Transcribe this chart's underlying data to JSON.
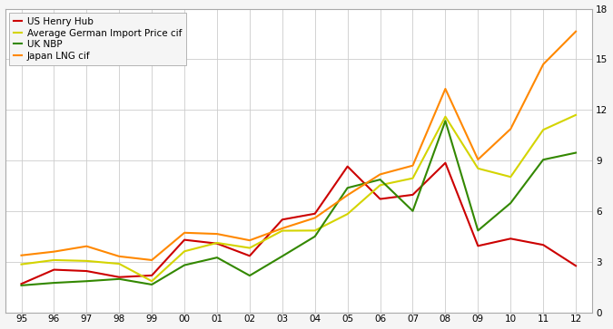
{
  "years": [
    1995,
    1996,
    1997,
    1998,
    1999,
    2000,
    2001,
    2002,
    2003,
    2004,
    2005,
    2006,
    2007,
    2008,
    2009,
    2010,
    2011,
    2012
  ],
  "henry_hub": [
    1.69,
    2.53,
    2.45,
    2.09,
    2.19,
    4.3,
    4.08,
    3.35,
    5.5,
    5.85,
    8.65,
    6.72,
    6.97,
    8.86,
    3.94,
    4.37,
    4.0,
    2.76
  ],
  "german_import": [
    2.85,
    3.1,
    3.05,
    2.88,
    1.85,
    3.62,
    4.12,
    3.82,
    4.84,
    4.85,
    5.83,
    7.54,
    7.95,
    11.6,
    8.53,
    8.03,
    10.82,
    11.7
  ],
  "uk_nbp": [
    1.6,
    1.75,
    1.85,
    1.98,
    1.65,
    2.8,
    3.25,
    2.18,
    3.33,
    4.5,
    7.38,
    7.87,
    6.01,
    11.35,
    4.85,
    6.48,
    9.05,
    9.46
  ],
  "japan_lng": [
    3.38,
    3.6,
    3.92,
    3.32,
    3.1,
    4.72,
    4.65,
    4.27,
    4.98,
    5.6,
    6.95,
    8.18,
    8.7,
    13.25,
    9.06,
    10.87,
    14.7,
    16.65
  ],
  "series_colors": {
    "henry_hub": "#cc0000",
    "german_import": "#d4d400",
    "uk_nbp": "#338800",
    "japan_lng": "#ff8800"
  },
  "series_labels": {
    "henry_hub": "US Henry Hub",
    "german_import": "Average German Import Price cif",
    "uk_nbp": "UK NBP",
    "japan_lng": "Japan LNG cif"
  },
  "ylim": [
    0,
    18
  ],
  "yticks": [
    0,
    3,
    6,
    9,
    12,
    15,
    18
  ],
  "grid_color": "#cccccc",
  "background_color": "#f5f5f5",
  "plot_bg_color": "#ffffff",
  "line_width": 1.5,
  "border_color": "#aaaaaa",
  "legend_fontsize": 7.5,
  "tick_fontsize": 7.5
}
